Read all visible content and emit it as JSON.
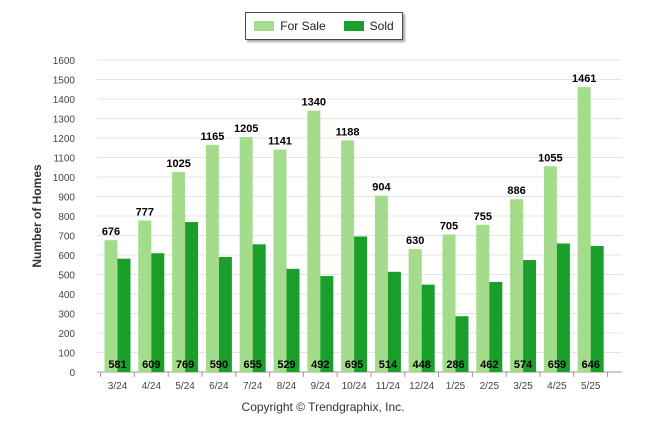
{
  "chart_data": {
    "type": "bar",
    "categories": [
      "3/24",
      "4/24",
      "5/24",
      "6/24",
      "7/24",
      "8/24",
      "9/24",
      "10/24",
      "11/24",
      "12/24",
      "1/25",
      "2/25",
      "3/25",
      "4/25",
      "5/25"
    ],
    "series": [
      {
        "name": "For Sale",
        "color": "#a3dc8a",
        "values": [
          676,
          777,
          1025,
          1165,
          1205,
          1141,
          1340,
          1188,
          904,
          630,
          705,
          755,
          886,
          1055,
          1461
        ]
      },
      {
        "name": "Sold",
        "color": "#1aa02a",
        "values": [
          581,
          609,
          769,
          590,
          655,
          529,
          492,
          695,
          514,
          448,
          286,
          462,
          574,
          659,
          646
        ]
      }
    ],
    "ylabel": "Number of Homes",
    "ylim": [
      0,
      1600
    ],
    "yticks": [
      0,
      100,
      200,
      300,
      400,
      500,
      600,
      700,
      800,
      900,
      1000,
      1100,
      1200,
      1300,
      1400,
      1500,
      1600
    ],
    "grid": true,
    "legend_position": "top-center"
  },
  "footer": {
    "copyright": "Copyright © Trendgraphix, Inc."
  }
}
